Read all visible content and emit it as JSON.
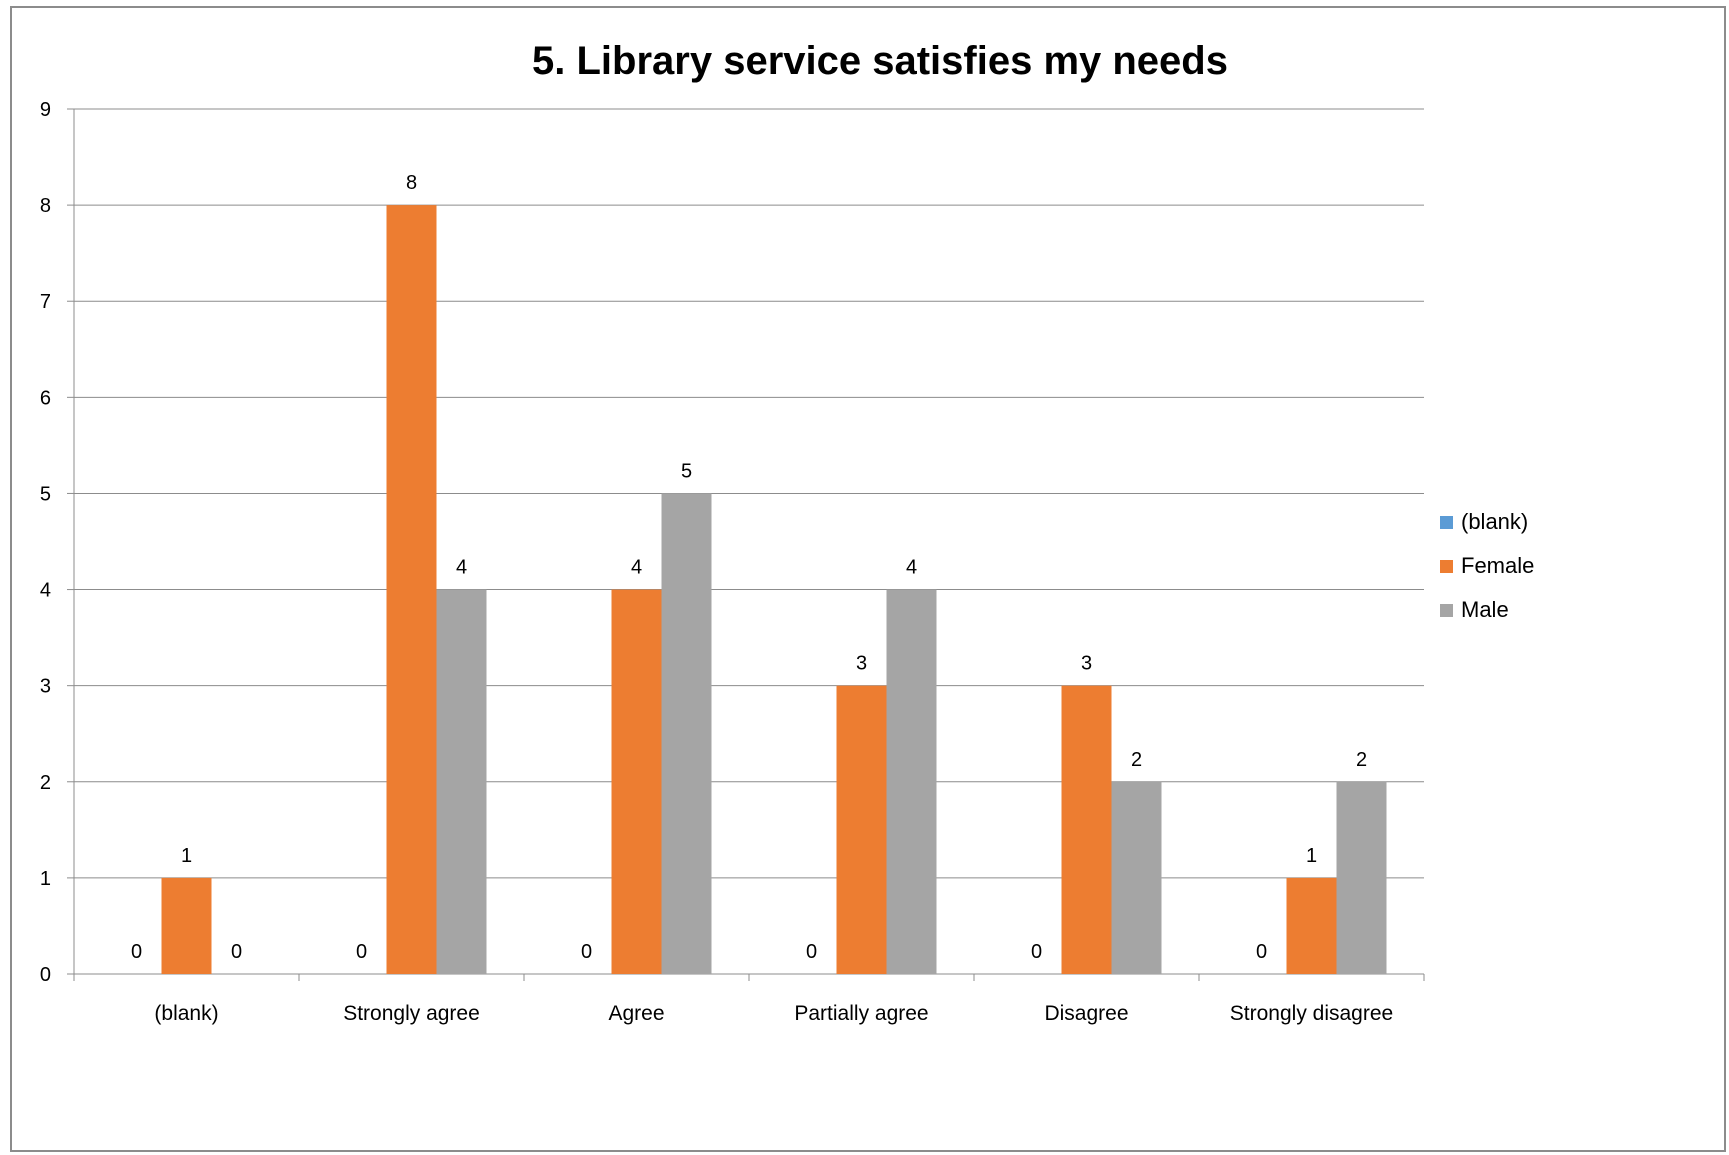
{
  "chart_data": {
    "type": "bar",
    "title": "5. Library service satisfies my needs",
    "xlabel": "",
    "ylabel": "",
    "categories": [
      "(blank)",
      "Strongly agree",
      "Agree",
      "Partially agree",
      "Disagree",
      "Strongly disagree"
    ],
    "series": [
      {
        "name": "(blank)",
        "color": "#5b9bd5",
        "values": [
          0,
          0,
          0,
          0,
          0,
          0
        ]
      },
      {
        "name": "Female",
        "color": "#ed7d31",
        "values": [
          1,
          8,
          4,
          3,
          3,
          1
        ]
      },
      {
        "name": "Male",
        "color": "#a5a5a5",
        "values": [
          0,
          4,
          5,
          4,
          2,
          2
        ]
      }
    ],
    "ylim": [
      0,
      9
    ],
    "yticks": [
      "0",
      "1",
      "2",
      "3",
      "4",
      "5",
      "6",
      "7",
      "8",
      "9"
    ],
    "grid": true,
    "legend_position": "right",
    "data_labels": true
  }
}
